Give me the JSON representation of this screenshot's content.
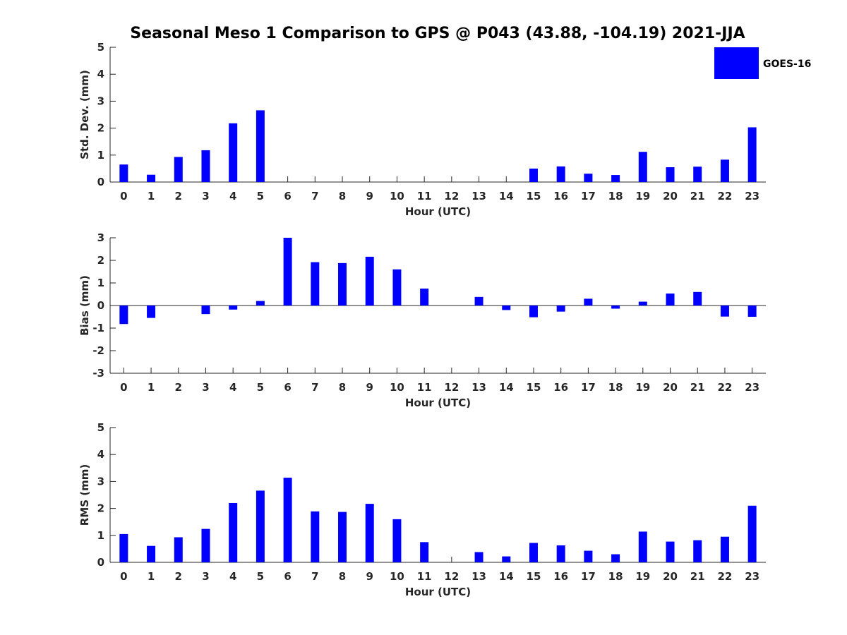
{
  "chart_data": {
    "title": "Seasonal Meso 1 Comparison to GPS @ P043 (43.88, -104.19) 2021-JJA",
    "legend": {
      "label": "GOES-16",
      "color": "#0000ff",
      "placement": "top-right"
    },
    "bar_color": "#0000ff",
    "categories": [
      "0",
      "1",
      "2",
      "3",
      "4",
      "5",
      "6",
      "7",
      "8",
      "9",
      "10",
      "11",
      "12",
      "13",
      "14",
      "15",
      "16",
      "17",
      "18",
      "19",
      "20",
      "21",
      "22",
      "23"
    ],
    "panels": [
      {
        "type": "bar",
        "ylabel": "Std. Dev. (mm)",
        "xlabel": "Hour (UTC)",
        "ylim": [
          0,
          5
        ],
        "yticks": [
          0,
          1,
          2,
          3,
          4,
          5
        ],
        "values": [
          0.65,
          0.27,
          0.93,
          1.18,
          2.18,
          2.66,
          0,
          0,
          0,
          0,
          0,
          0,
          0,
          0,
          0,
          0.5,
          0.58,
          0.31,
          0.26,
          1.12,
          0.55,
          0.57,
          0.83,
          2.03
        ]
      },
      {
        "type": "bar",
        "ylabel": "Bias (mm)",
        "xlabel": "Hour (UTC)",
        "ylim": [
          -3,
          3
        ],
        "yticks": [
          -3,
          -2,
          -1,
          0,
          1,
          2,
          3
        ],
        "values": [
          -0.82,
          -0.55,
          0,
          -0.38,
          -0.18,
          0.2,
          3.0,
          1.92,
          1.88,
          2.16,
          1.6,
          0.75,
          0,
          0.38,
          -0.2,
          -0.52,
          -0.27,
          0.3,
          -0.14,
          0.17,
          0.53,
          0.6,
          -0.49,
          -0.5
        ]
      },
      {
        "type": "bar",
        "ylabel": "RMS (mm)",
        "xlabel": "Hour (UTC)",
        "ylim": [
          0,
          5
        ],
        "yticks": [
          0,
          1,
          2,
          3,
          4,
          5
        ],
        "values": [
          1.05,
          0.61,
          0.93,
          1.24,
          2.2,
          2.66,
          3.14,
          1.89,
          1.87,
          2.17,
          1.6,
          0.75,
          0,
          0.38,
          0.22,
          0.72,
          0.63,
          0.43,
          0.3,
          1.14,
          0.77,
          0.82,
          0.95,
          2.1
        ]
      }
    ]
  }
}
